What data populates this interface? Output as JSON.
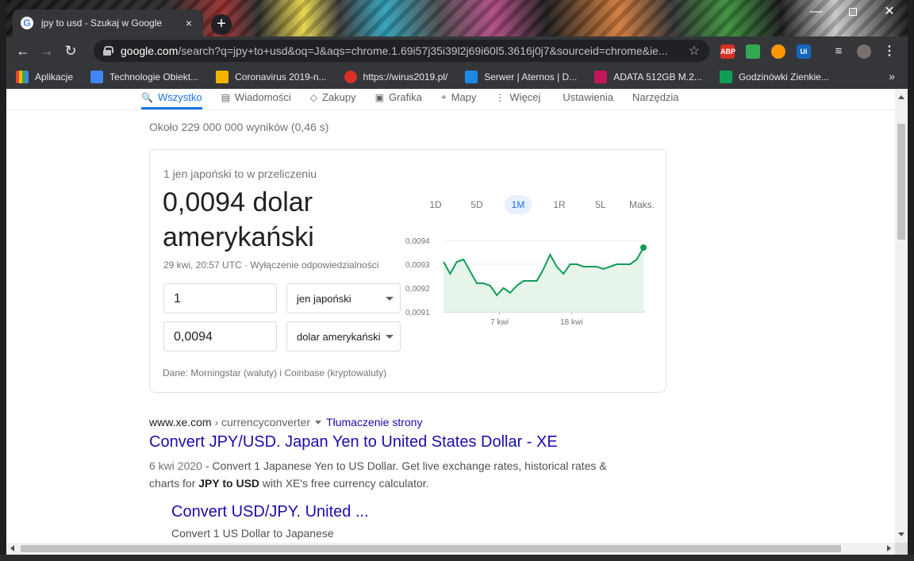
{
  "tab": {
    "title": "jpy to usd - Szukaj w Google",
    "close": "×"
  },
  "window_controls": {
    "minimize": "—",
    "close": "✕"
  },
  "toolbar": {
    "url_host": "google.com",
    "url_path": "/search?q=jpy+to+usd&oq=J&aqs=chrome.1.69i57j35i39l2j69i60l5.3616j0j7&sourceid=chrome&ie...",
    "extensions": [
      "ABP",
      "Ui"
    ]
  },
  "bookmarks": [
    {
      "label": "Aplikacje",
      "color": "#ea4335"
    },
    {
      "label": "Technologie Obiekt...",
      "color": "#4285f4"
    },
    {
      "label": "Coronavirus 2019-n...",
      "color": "#f4b400"
    },
    {
      "label": "https://wirus2019.pl/",
      "color": "#d93025"
    },
    {
      "label": "Serwer | Aternos | D...",
      "color": "#1e88e5"
    },
    {
      "label": "ADATA 512GB M.2...",
      "color": "#c2185b"
    },
    {
      "label": "Godzinówki Zienkie...",
      "color": "#0f9d58"
    }
  ],
  "search_tabs": [
    {
      "label": "Wszystko",
      "icon": "search-icon",
      "active": true
    },
    {
      "label": "Wiadomości",
      "icon": "news-icon"
    },
    {
      "label": "Zakupy",
      "icon": "tag-icon"
    },
    {
      "label": "Grafika",
      "icon": "image-icon"
    },
    {
      "label": "Mapy",
      "icon": "map-pin-icon"
    },
    {
      "label": "Więcej",
      "icon": "more-icon"
    },
    {
      "label": "Ustawienia"
    },
    {
      "label": "Narzędzia"
    }
  ],
  "stats": "Około 229 000 000 wyników (0,46 s)",
  "converter": {
    "subtitle": "1 jen japoński to w przeliczeniu",
    "result": "0,0094 dolar amerykański",
    "timestamp": "29 kwi, 20:57 UTC",
    "separator": " · ",
    "disclaimer": "Wyłączenie odpowiedzialności",
    "from_value": "1",
    "from_currency": "jen japoński",
    "to_value": "0,0094",
    "to_currency": "dolar amerykański",
    "source": "Dane: Morningstar (waluty) i Coinbase (kryptowaluty)",
    "ranges": [
      "1D",
      "5D",
      "1M",
      "1R",
      "5L",
      "Maks."
    ],
    "active_range": "1M"
  },
  "chart_data": {
    "type": "area",
    "y_ticks": [
      "0,0094",
      "0,0093",
      "0,0092",
      "0,0091"
    ],
    "x_ticks": [
      "7 kwi",
      "18 kwi"
    ],
    "ylim": [
      0.0091,
      0.0094
    ],
    "values": [
      0.00931,
      0.00926,
      0.00931,
      0.00932,
      0.00927,
      0.00922,
      0.00922,
      0.00921,
      0.00917,
      0.0092,
      0.00918,
      0.00921,
      0.00923,
      0.00923,
      0.00923,
      0.00928,
      0.00934,
      0.00929,
      0.00926,
      0.0093,
      0.0093,
      0.00929,
      0.00929,
      0.00929,
      0.00928,
      0.00929,
      0.0093,
      0.0093,
      0.0093,
      0.00932,
      0.00937
    ],
    "line_color": "#0f9d58",
    "fill_color": "#e6f4ea",
    "grid": true
  },
  "result1": {
    "site": "www.xe.com",
    "crumb": " › currencyconverter",
    "translate": "Tłumaczenie strony",
    "title": "Convert JPY/USD. Japan Yen to United States Dollar - XE",
    "date": "6 kwi 2020",
    "snippet_a": " - Convert 1 Japanese Yen to US Dollar. Get live exchange rates, historical rates & charts for ",
    "snippet_bold": "JPY to USD",
    "snippet_b": " with XE's free currency calculator."
  },
  "result2": {
    "title": "Convert USD/JPY. United ...",
    "snippet": "Convert 1 US Dollar to Japanese"
  }
}
